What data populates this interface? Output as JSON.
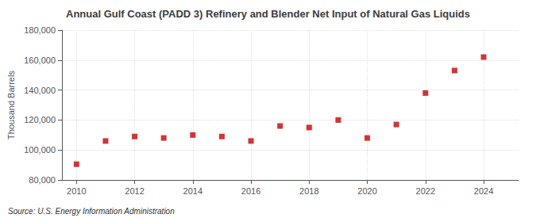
{
  "chart_data": {
    "type": "scatter",
    "title": "Annual Gulf Coast (PADD 3) Refinery and Blender Net Input of Natural Gas Liquids",
    "ylabel": "Thousand Barrels",
    "annotations": [
      "Source: U.S. Energy Information Administration"
    ],
    "x": [
      2010,
      2011,
      2012,
      2013,
      2014,
      2015,
      2016,
      2017,
      2018,
      2019,
      2020,
      2021,
      2022,
      2023,
      2024
    ],
    "values": [
      90500,
      106000,
      109000,
      108000,
      110000,
      109000,
      106000,
      116000,
      115000,
      120000,
      108000,
      117000,
      138000,
      153000,
      162000
    ],
    "color": "#cc0000",
    "marker": "square",
    "xlim": [
      2009.5,
      2025.2
    ],
    "xticks": [
      2010,
      2012,
      2014,
      2016,
      2018,
      2020,
      2022,
      2024
    ],
    "ylim": [
      80000,
      180000
    ],
    "yticks": [
      {
        "value": 80000,
        "label": "80,000"
      },
      {
        "value": 100000,
        "label": "100,000"
      },
      {
        "value": 120000,
        "label": "120,000"
      },
      {
        "value": 140000,
        "label": "140,000"
      },
      {
        "value": 160000,
        "label": "160,000"
      },
      {
        "value": 180000,
        "label": "180,000"
      }
    ],
    "grid": true
  }
}
